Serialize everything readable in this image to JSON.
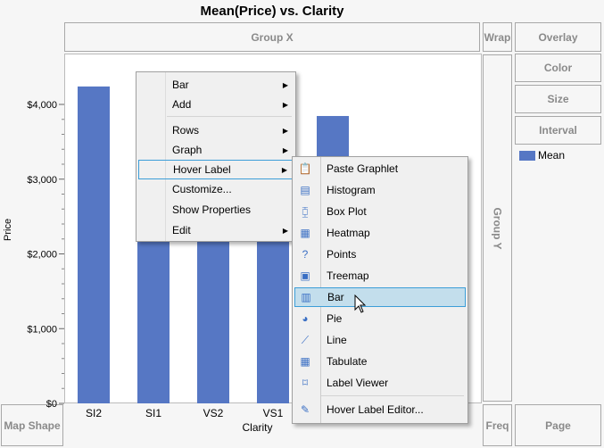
{
  "title": "Mean(Price) vs. Clarity",
  "zones": {
    "group_x": "Group X",
    "wrap": "Wrap",
    "overlay": "Overlay",
    "color": "Color",
    "size": "Size",
    "interval": "Interval",
    "group_y": "Group Y",
    "map_shape": "Map Shape",
    "freq": "Freq",
    "page": "Page"
  },
  "legend": {
    "label": "Mean",
    "color": "#5677c4"
  },
  "chart_data": {
    "type": "bar",
    "title": "Mean(Price) vs. Clarity",
    "xlabel": "Clarity",
    "ylabel": "Price",
    "categories": [
      "SI2",
      "SI1",
      "VS2",
      "VS1",
      ""
    ],
    "values": [
      4240,
      3996,
      3925,
      3839,
      3845
    ],
    "ylim": [
      0,
      4000
    ],
    "yticks": [
      "$0",
      "$1,000",
      "$2,000",
      "$3,000",
      "$4,000"
    ],
    "bar_color": "#5677c4"
  },
  "context_menu": {
    "items": [
      {
        "label": "Bar",
        "submenu": true
      },
      {
        "label": "Add",
        "submenu": true
      },
      {
        "label": "Rows",
        "submenu": true
      },
      {
        "label": "Graph",
        "submenu": true
      },
      {
        "label": "Hover Label",
        "submenu": true,
        "highlighted": true
      },
      {
        "label": "Customize..."
      },
      {
        "label": "Show Properties"
      },
      {
        "label": "Edit",
        "submenu": true
      }
    ]
  },
  "hover_submenu": {
    "items": [
      {
        "label": "Paste Graphlet",
        "icon": "paste-icon"
      },
      {
        "label": "Histogram",
        "icon": "histogram-icon"
      },
      {
        "label": "Box Plot",
        "icon": "boxplot-icon"
      },
      {
        "label": "Heatmap",
        "icon": "heatmap-icon"
      },
      {
        "label": "Points",
        "icon": "points-icon"
      },
      {
        "label": "Treemap",
        "icon": "treemap-icon"
      },
      {
        "label": "Bar",
        "icon": "bar-icon",
        "highlighted": true
      },
      {
        "label": "Pie",
        "icon": "pie-icon"
      },
      {
        "label": "Line",
        "icon": "line-icon"
      },
      {
        "label": "Tabulate",
        "icon": "tabulate-icon"
      },
      {
        "label": "Label Viewer",
        "icon": "label-viewer-icon"
      },
      {
        "label": "Hover Label Editor...",
        "icon": "pencil-icon"
      }
    ]
  }
}
